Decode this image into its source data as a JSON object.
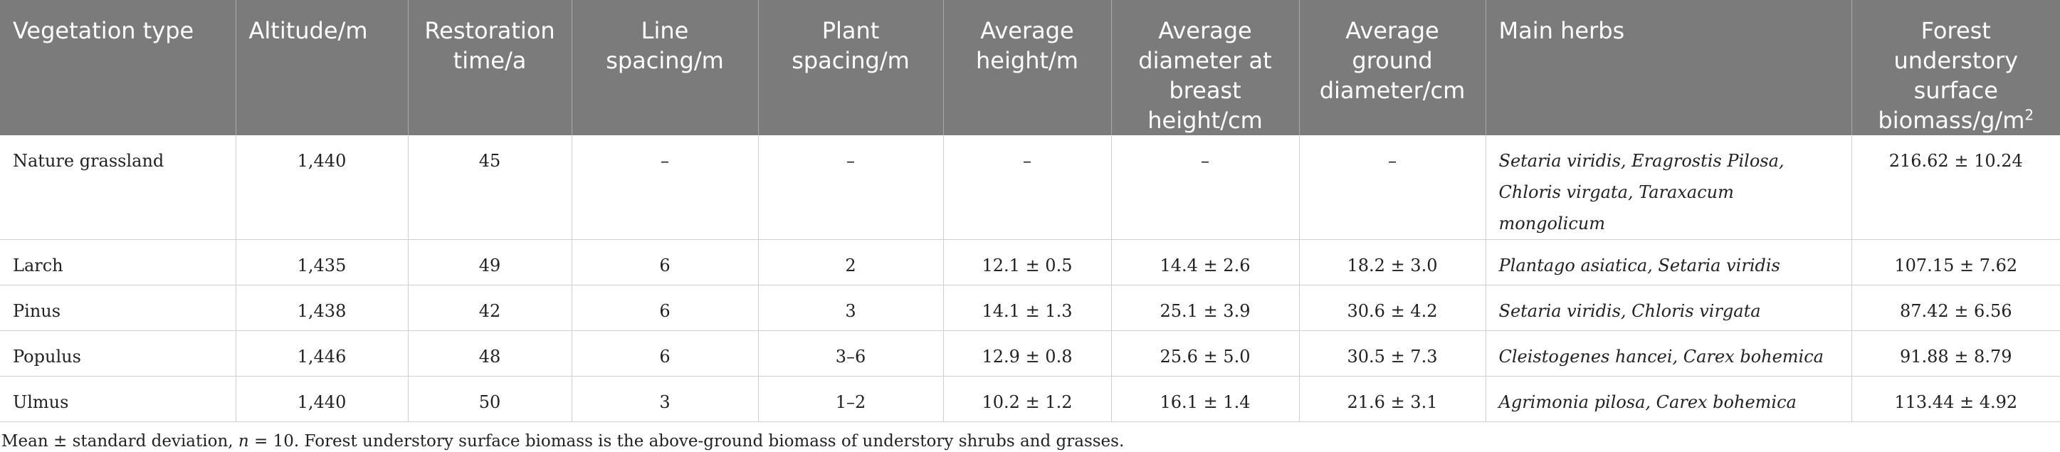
{
  "table": {
    "headers": [
      "Vegetation type",
      "Altitude/m",
      "Restoration time/a",
      "Line spacing/m",
      "Plant spacing/m",
      "Average height/m",
      "Average diameter at breast height/cm",
      "Average ground diameter/cm",
      "Main herbs",
      "Forest understory surface biomass/g/m"
    ],
    "header_last_sup": "2",
    "rows": [
      [
        "Nature grassland",
        "1,440",
        "45",
        "–",
        "–",
        "–",
        "–",
        "–",
        "Setaria viridis, Eragrostis Pilosa, Chloris virgata, Taraxacum mongolicum",
        "216.62 ± 10.24"
      ],
      [
        "Larch",
        "1,435",
        "49",
        "6",
        "2",
        "12.1 ± 0.5",
        "14.4 ± 2.6",
        "18.2 ± 3.0",
        "Plantago asiatica, Setaria viridis",
        "107.15 ± 7.62"
      ],
      [
        "Pinus",
        "1,438",
        "42",
        "6",
        "3",
        "14.1 ± 1.3",
        "25.1 ± 3.9",
        "30.6 ± 4.2",
        "Setaria viridis, Chloris virgata",
        "87.42 ± 6.56"
      ],
      [
        "Populus",
        "1,446",
        "48",
        "6",
        "3–6",
        "12.9 ± 0.8",
        "25.6 ± 5.0",
        "30.5 ± 7.3",
        "Cleistogenes hancei, Carex bohemica",
        "91.88 ± 8.79"
      ],
      [
        "Ulmus",
        "1,440",
        "50",
        "3",
        "1–2",
        "10.2 ± 1.2",
        "16.1 ± 1.4",
        "21.6 ± 3.1",
        "Agrimonia pilosa, Carex bohemica",
        "113.44 ± 4.92"
      ]
    ]
  },
  "footnote": {
    "pre": "Mean ± standard deviation, ",
    "n_var": "n",
    "post": " = 10. Forest understory surface biomass is the above-ground biomass of understory shrubs and grasses."
  }
}
